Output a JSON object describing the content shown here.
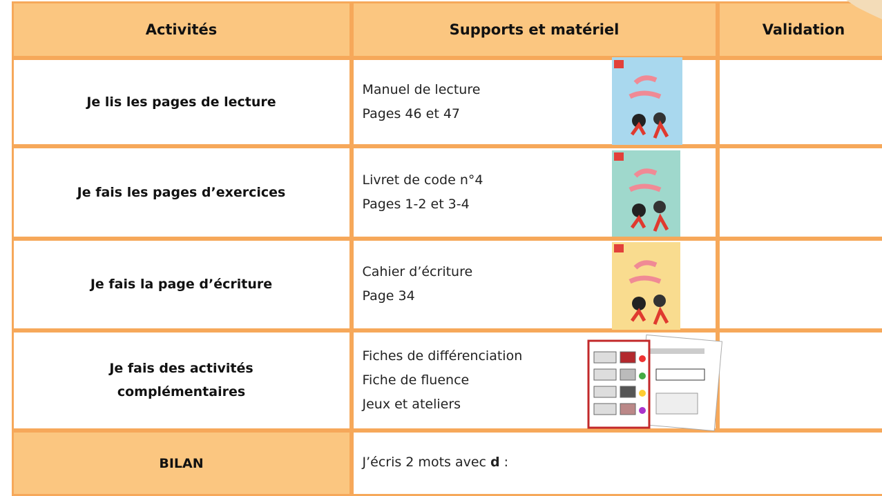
{
  "header": {
    "activities": "Activités",
    "supports": "Supports et matériel",
    "validation": "Validation"
  },
  "rows": [
    {
      "activity": [
        "Je lis les pages de lecture"
      ],
      "supports": [
        "Manuel de lecture",
        "Pages 46 et 47"
      ]
    },
    {
      "activity": [
        "Je fais les pages d’exercices"
      ],
      "supports": [
        "Livret de code n°4",
        "Pages 1-2 et 3-4"
      ]
    },
    {
      "activity": [
        "Je fais la page d’écriture"
      ],
      "supports": [
        "Cahier d’écriture",
        "Page 34"
      ]
    },
    {
      "activity": [
        "Je fais des activités",
        "complémentaires"
      ],
      "supports": [
        "Fiches de différenciation",
        "Fiche de fluence",
        "Jeux et ateliers"
      ]
    }
  ],
  "bilan": {
    "label": "BILAN",
    "text": "J’écris 2 mots avec ",
    "bold": "d",
    "after": " :"
  }
}
